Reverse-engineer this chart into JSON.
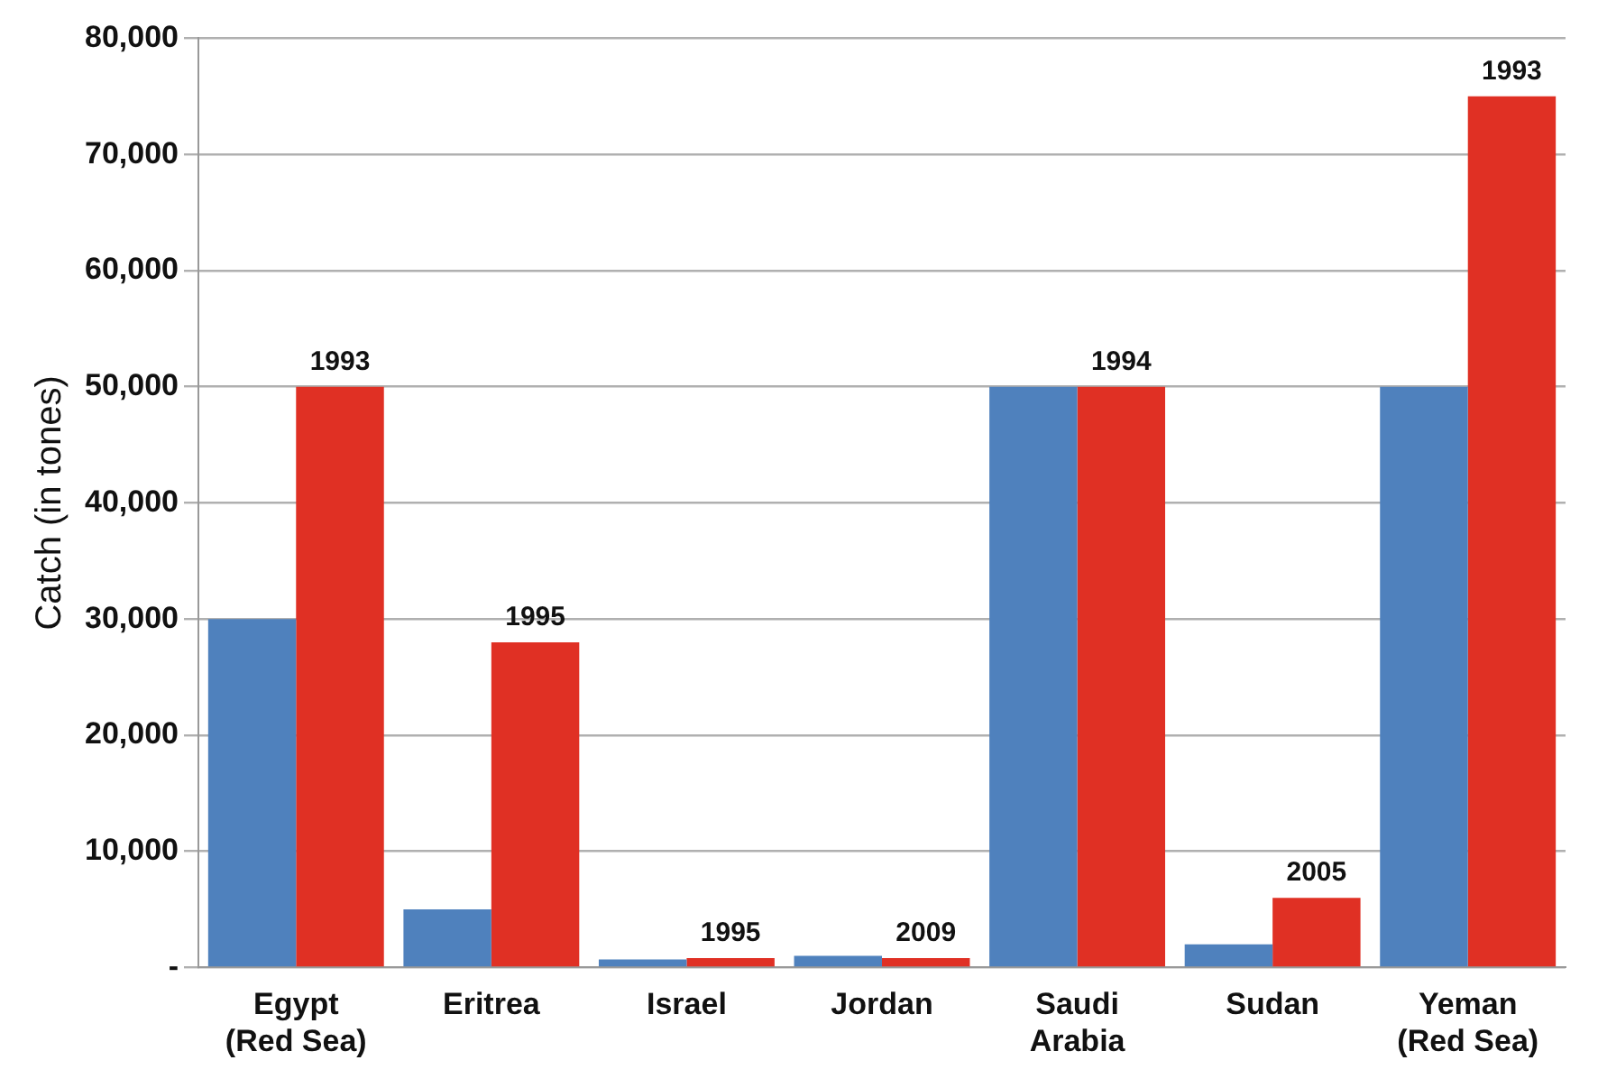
{
  "chart_data": {
    "type": "bar",
    "ylabel": "Catch (in tones)",
    "categories": [
      "Egypt (Red Sea)",
      "Eritrea",
      "Israel",
      "Jordan",
      "Saudi Arabia",
      "Sudan",
      "Yeman (Red Sea)"
    ],
    "series": [
      {
        "color": "#4f81bd",
        "values": [
          30000,
          5000,
          700,
          1000,
          50000,
          2000,
          50000
        ]
      },
      {
        "color": "#e03024",
        "values": [
          50000,
          28000,
          800,
          800,
          50000,
          6000,
          75000
        ]
      }
    ],
    "annotations": [
      {
        "text": "1993",
        "x": "Egypt (Red Sea)",
        "y": 50000
      },
      {
        "text": "1995",
        "x": "Eritrea",
        "y": 28000
      },
      {
        "text": "1995",
        "x": "Israel",
        "y": 800
      },
      {
        "text": "2009",
        "x": "Jordan",
        "y": 800
      },
      {
        "text": "1994",
        "x": "Saudi Arabia",
        "y": 50000
      },
      {
        "text": "2005",
        "x": "Sudan",
        "y": 6000
      },
      {
        "text": "1993",
        "x": "Yeman (Red Sea)",
        "y": 75000
      }
    ],
    "ylim": [
      0,
      80000
    ],
    "yticks": [
      {
        "value": 0,
        "label": "-"
      },
      {
        "value": 10000,
        "label": "10,000"
      },
      {
        "value": 20000,
        "label": "20,000"
      },
      {
        "value": 30000,
        "label": "30,000"
      },
      {
        "value": 40000,
        "label": "40,000"
      },
      {
        "value": 50000,
        "label": "50,000"
      },
      {
        "value": 60000,
        "label": "60,000"
      },
      {
        "value": 70000,
        "label": "70,000"
      },
      {
        "value": 80000,
        "label": "80,000"
      }
    ],
    "grid": "y",
    "legend": false
  }
}
